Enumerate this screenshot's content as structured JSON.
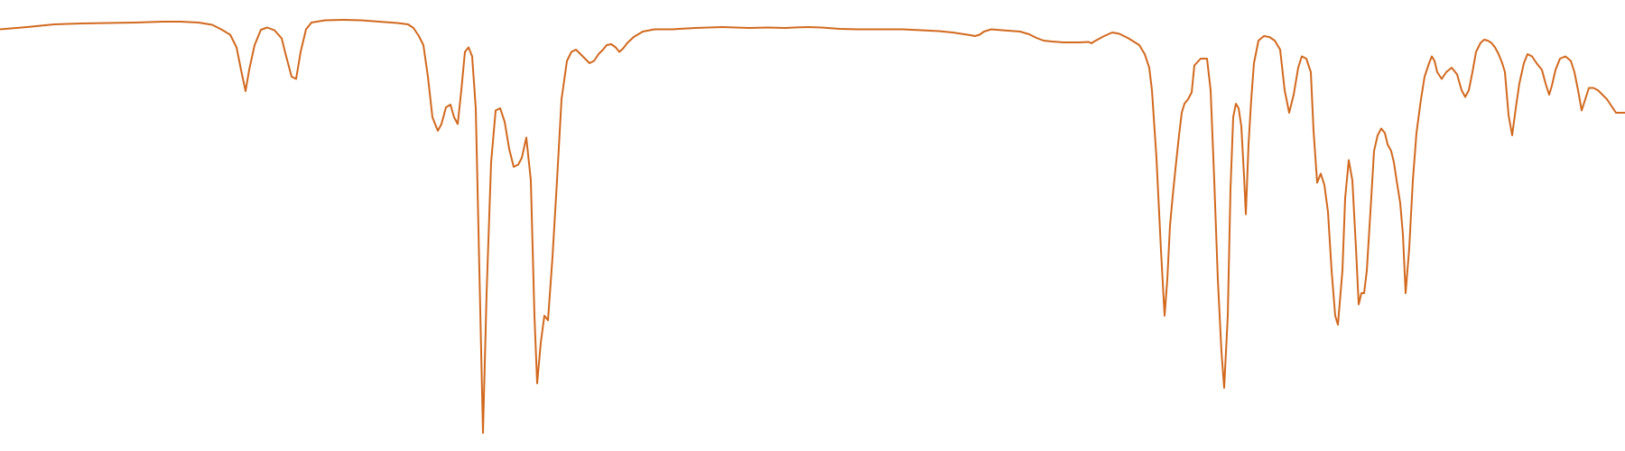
{
  "chart_data": {
    "type": "line",
    "title": "",
    "xlabel": "",
    "ylabel": "",
    "grid": false,
    "legend": "none",
    "xlim": [
      0,
      1800
    ],
    "ylim": [
      0,
      100
    ],
    "series": [
      {
        "color": "#d2691e",
        "points": [
          [
            0,
            93.5
          ],
          [
            30,
            94.0
          ],
          [
            60,
            94.6
          ],
          [
            90,
            94.8
          ],
          [
            120,
            94.9
          ],
          [
            150,
            95.0
          ],
          [
            180,
            95.2
          ],
          [
            200,
            95.2
          ],
          [
            220,
            95.0
          ],
          [
            235,
            94.5
          ],
          [
            245,
            93.5
          ],
          [
            255,
            92.3
          ],
          [
            262,
            89.5
          ],
          [
            267,
            84.5
          ],
          [
            272,
            79.8
          ],
          [
            276,
            84.5
          ],
          [
            282,
            90.0
          ],
          [
            289,
            93.4
          ],
          [
            296,
            93.9
          ],
          [
            304,
            93.3
          ],
          [
            312,
            91.5
          ],
          [
            317,
            87.5
          ],
          [
            323,
            83.0
          ],
          [
            328,
            82.5
          ],
          [
            333,
            88.5
          ],
          [
            339,
            93.5
          ],
          [
            345,
            95.0
          ],
          [
            360,
            95.5
          ],
          [
            380,
            95.6
          ],
          [
            400,
            95.5
          ],
          [
            420,
            95.2
          ],
          [
            440,
            94.9
          ],
          [
            452,
            94.6
          ],
          [
            458,
            93.8
          ],
          [
            464,
            92.0
          ],
          [
            469,
            90.0
          ],
          [
            474,
            83.0
          ],
          [
            479,
            74.0
          ],
          [
            485,
            71.0
          ],
          [
            489,
            72.5
          ],
          [
            494,
            76.2
          ],
          [
            499,
            76.8
          ],
          [
            503,
            74.0
          ],
          [
            507,
            72.5
          ],
          [
            511,
            80.0
          ],
          [
            515,
            88.5
          ],
          [
            519,
            89.5
          ],
          [
            523,
            87.5
          ],
          [
            527,
            76.0
          ],
          [
            531,
            40.0
          ],
          [
            535,
            4.0
          ],
          [
            539,
            35.0
          ],
          [
            544,
            64.0
          ],
          [
            549,
            75.5
          ],
          [
            554,
            76.0
          ],
          [
            559,
            73.0
          ],
          [
            564,
            67.0
          ],
          [
            569,
            63.0
          ],
          [
            574,
            63.5
          ],
          [
            578,
            65.0
          ],
          [
            583,
            69.5
          ],
          [
            588,
            60.0
          ],
          [
            592,
            30.0
          ],
          [
            595,
            15.0
          ],
          [
            599,
            24.0
          ],
          [
            603,
            30.0
          ],
          [
            607,
            29.0
          ],
          [
            612,
            43.0
          ],
          [
            617,
            60.0
          ],
          [
            622,
            78.0
          ],
          [
            628,
            86.5
          ],
          [
            633,
            88.5
          ],
          [
            638,
            89.0
          ],
          [
            643,
            88.0
          ],
          [
            648,
            87.0
          ],
          [
            653,
            86.0
          ],
          [
            658,
            86.5
          ],
          [
            663,
            88.0
          ],
          [
            668,
            89.0
          ],
          [
            672,
            90.0
          ],
          [
            677,
            90.2
          ],
          [
            682,
            89.5
          ],
          [
            686,
            88.5
          ],
          [
            690,
            89.2
          ],
          [
            695,
            90.5
          ],
          [
            702,
            91.8
          ],
          [
            712,
            93.0
          ],
          [
            725,
            93.5
          ],
          [
            745,
            93.5
          ],
          [
            770,
            93.8
          ],
          [
            800,
            94.0
          ],
          [
            830,
            93.8
          ],
          [
            850,
            93.9
          ],
          [
            870,
            93.8
          ],
          [
            880,
            93.9
          ],
          [
            895,
            94.0
          ],
          [
            910,
            93.9
          ],
          [
            930,
            93.6
          ],
          [
            950,
            93.5
          ],
          [
            975,
            93.5
          ],
          [
            1000,
            93.5
          ],
          [
            1020,
            93.3
          ],
          [
            1040,
            93.1
          ],
          [
            1055,
            92.8
          ],
          [
            1065,
            92.5
          ],
          [
            1075,
            92.2
          ],
          [
            1080,
            92.0
          ],
          [
            1085,
            92.3
          ],
          [
            1090,
            93.0
          ],
          [
            1098,
            93.5
          ],
          [
            1110,
            93.3
          ],
          [
            1130,
            93.0
          ],
          [
            1140,
            92.4
          ],
          [
            1148,
            91.6
          ],
          [
            1156,
            91.0
          ],
          [
            1165,
            90.8
          ],
          [
            1178,
            90.6
          ],
          [
            1195,
            90.6
          ],
          [
            1206,
            90.7
          ],
          [
            1209,
            90.4
          ],
          [
            1212,
            90.8
          ],
          [
            1222,
            91.9
          ],
          [
            1232,
            92.8
          ],
          [
            1240,
            92.5
          ],
          [
            1250,
            91.5
          ],
          [
            1262,
            90.0
          ],
          [
            1268,
            88.0
          ],
          [
            1273,
            85.0
          ],
          [
            1276,
            80.0
          ],
          [
            1281,
            65.0
          ],
          [
            1286,
            44.5
          ],
          [
            1290,
            30.0
          ],
          [
            1293,
            38.0
          ],
          [
            1296,
            50.0
          ],
          [
            1299,
            56.5
          ],
          [
            1302,
            62.5
          ],
          [
            1306,
            70.0
          ],
          [
            1309,
            75.0
          ],
          [
            1312,
            77.0
          ],
          [
            1316,
            78.0
          ],
          [
            1320,
            79.5
          ],
          [
            1323,
            85.5
          ],
          [
            1330,
            87.0
          ],
          [
            1337,
            87.0
          ],
          [
            1341,
            80.0
          ],
          [
            1345,
            60.0
          ],
          [
            1349,
            38.0
          ],
          [
            1353,
            22.0
          ],
          [
            1356,
            14.0
          ],
          [
            1360,
            30.0
          ],
          [
            1363,
            58.0
          ],
          [
            1366,
            74.0
          ],
          [
            1369,
            77.0
          ],
          [
            1372,
            76.0
          ],
          [
            1375,
            72.0
          ],
          [
            1378,
            61.0
          ],
          [
            1380,
            52.5
          ],
          [
            1383,
            68.0
          ],
          [
            1386,
            78.0
          ],
          [
            1389,
            86.0
          ],
          [
            1394,
            91.0
          ],
          [
            1400,
            92.0
          ],
          [
            1406,
            91.8
          ],
          [
            1412,
            91.0
          ],
          [
            1418,
            89.0
          ],
          [
            1423,
            80.0
          ],
          [
            1428,
            75.0
          ],
          [
            1433,
            79.0
          ],
          [
            1438,
            85.0
          ],
          [
            1442,
            87.5
          ],
          [
            1447,
            87.0
          ],
          [
            1452,
            84.0
          ],
          [
            1455,
            71.0
          ],
          [
            1459,
            59.5
          ],
          [
            1463,
            61.5
          ],
          [
            1467,
            59.0
          ],
          [
            1471,
            53.0
          ],
          [
            1475,
            40.0
          ],
          [
            1479,
            30.0
          ],
          [
            1482,
            28.0
          ],
          [
            1487,
            40.0
          ],
          [
            1490,
            56.0
          ],
          [
            1494,
            64.5
          ],
          [
            1498,
            60.0
          ],
          [
            1502,
            45.0
          ],
          [
            1505,
            32.5
          ],
          [
            1508,
            35.0
          ],
          [
            1511,
            35.0
          ],
          [
            1514,
            40.0
          ],
          [
            1518,
            53.0
          ],
          [
            1522,
            66.5
          ],
          [
            1526,
            70.0
          ],
          [
            1530,
            71.5
          ],
          [
            1534,
            70.5
          ],
          [
            1537,
            68.0
          ],
          [
            1541,
            66.5
          ],
          [
            1544,
            64.0
          ],
          [
            1547,
            60.0
          ],
          [
            1551,
            55.0
          ],
          [
            1554,
            48.0
          ],
          [
            1557,
            35.0
          ],
          [
            1561,
            45.0
          ],
          [
            1565,
            60.0
          ],
          [
            1569,
            70.5
          ],
          [
            1574,
            78.0
          ],
          [
            1578,
            83.0
          ],
          [
            1583,
            86.0
          ],
          [
            1586,
            87.5
          ],
          [
            1589,
            86.5
          ],
          [
            1592,
            84.0
          ],
          [
            1597,
            82.5
          ],
          [
            1602,
            84.0
          ],
          [
            1608,
            85.0
          ],
          [
            1614,
            83.5
          ],
          [
            1619,
            80.0
          ],
          [
            1623,
            78.5
          ],
          [
            1627,
            80.0
          ],
          [
            1631,
            84.0
          ],
          [
            1635,
            88.5
          ],
          [
            1640,
            90.5
          ],
          [
            1644,
            91.2
          ],
          [
            1648,
            91.0
          ],
          [
            1652,
            90.5
          ],
          [
            1656,
            89.5
          ],
          [
            1660,
            88.0
          ],
          [
            1664,
            86.0
          ],
          [
            1667,
            84.0
          ],
          [
            1671,
            74.5
          ],
          [
            1675,
            70.0
          ],
          [
            1679,
            76.0
          ],
          [
            1683,
            81.5
          ],
          [
            1688,
            86.0
          ],
          [
            1692,
            88.0
          ],
          [
            1697,
            87.5
          ],
          [
            1702,
            86.0
          ],
          [
            1708,
            84.5
          ],
          [
            1712,
            81.5
          ],
          [
            1716,
            79.0
          ],
          [
            1719,
            81.0
          ],
          [
            1723,
            84.5
          ],
          [
            1728,
            87.0
          ],
          [
            1734,
            87.5
          ],
          [
            1740,
            86.5
          ],
          [
            1744,
            84.0
          ],
          [
            1748,
            80.0
          ],
          [
            1752,
            75.5
          ],
          [
            1756,
            78.0
          ],
          [
            1760,
            80.5
          ],
          [
            1765,
            80.5
          ],
          [
            1770,
            80.0
          ],
          [
            1775,
            79.0
          ],
          [
            1780,
            78.0
          ],
          [
            1785,
            76.5
          ],
          [
            1790,
            75.0
          ],
          [
            1795,
            75.0
          ],
          [
            1800,
            75.0
          ]
        ]
      }
    ]
  }
}
